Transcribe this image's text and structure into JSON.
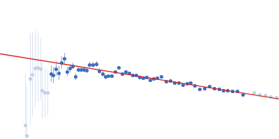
{
  "chart_data": {
    "type": "scatter",
    "xlim": [
      0,
      400
    ],
    "ylim": [
      0,
      200
    ],
    "xticks": [],
    "yticks": [],
    "tick_labels": false,
    "grid": false,
    "series": [
      {
        "type": "scatter",
        "color": "#c3d1e9",
        "marker": "circle",
        "x": [
          36,
          38,
          43,
          46,
          50,
          54,
          58,
          60,
          64,
          68
        ],
        "values": [
          20,
          5,
          87,
          93,
          102,
          103,
          101,
          70,
          67,
          67
        ],
        "errors": [
          75,
          70,
          65,
          60,
          55,
          50,
          45,
          40,
          35,
          33
        ]
      },
      {
        "type": "scatter",
        "color": "#3f6fbf",
        "marker": "circle",
        "x": [
          73,
          76,
          80,
          84,
          88,
          92,
          96,
          100,
          104,
          108,
          112,
          116,
          120,
          124,
          128,
          133,
          138,
          142,
          147,
          151,
          155,
          160,
          165,
          170,
          175,
          180,
          185,
          190,
          195,
          200,
          205,
          210,
          215,
          220,
          225,
          231,
          238,
          244,
          250,
          256,
          262,
          268,
          273,
          279,
          286,
          293,
          300,
          307,
          314,
          320,
          326,
          333,
          340,
          348
        ],
        "values": [
          94,
          92,
          101,
          95,
          110,
          116,
          97,
          102,
          105,
          90,
          100,
          100,
          100,
          99,
          107,
          107,
          108,
          98,
          94,
          90,
          91,
          91,
          97,
          103,
          94,
          97,
          95,
          92,
          92,
          89,
          88,
          89,
          85,
          87,
          88,
          90,
          83,
          84,
          81,
          81,
          78,
          80,
          81,
          77,
          72,
          73,
          76,
          73,
          72,
          70,
          70,
          69,
          69,
          64
        ],
        "errors": [
          12,
          12,
          10,
          10,
          9,
          8,
          7,
          6,
          5,
          5,
          4,
          4,
          4,
          4,
          4,
          4,
          4,
          4,
          4,
          4,
          2,
          2,
          2,
          2,
          2,
          2,
          2,
          2,
          2,
          2,
          2,
          2,
          2,
          2,
          2,
          2,
          2,
          2,
          2,
          2,
          2,
          2,
          2,
          2,
          2,
          2,
          2,
          2,
          2,
          2,
          2,
          2,
          2,
          2
        ]
      },
      {
        "type": "scatter",
        "color": "#c3d1e9",
        "marker": "circle",
        "x": [
          364,
          372,
          380,
          388,
          396
        ],
        "values": [
          67,
          64,
          63,
          61,
          60
        ],
        "errors": [
          2,
          2,
          2,
          2,
          2
        ]
      },
      {
        "type": "line",
        "color": "#d62728",
        "line_style": "solid",
        "x": [
          0,
          400
        ],
        "values": [
          123,
          58
        ]
      }
    ]
  }
}
